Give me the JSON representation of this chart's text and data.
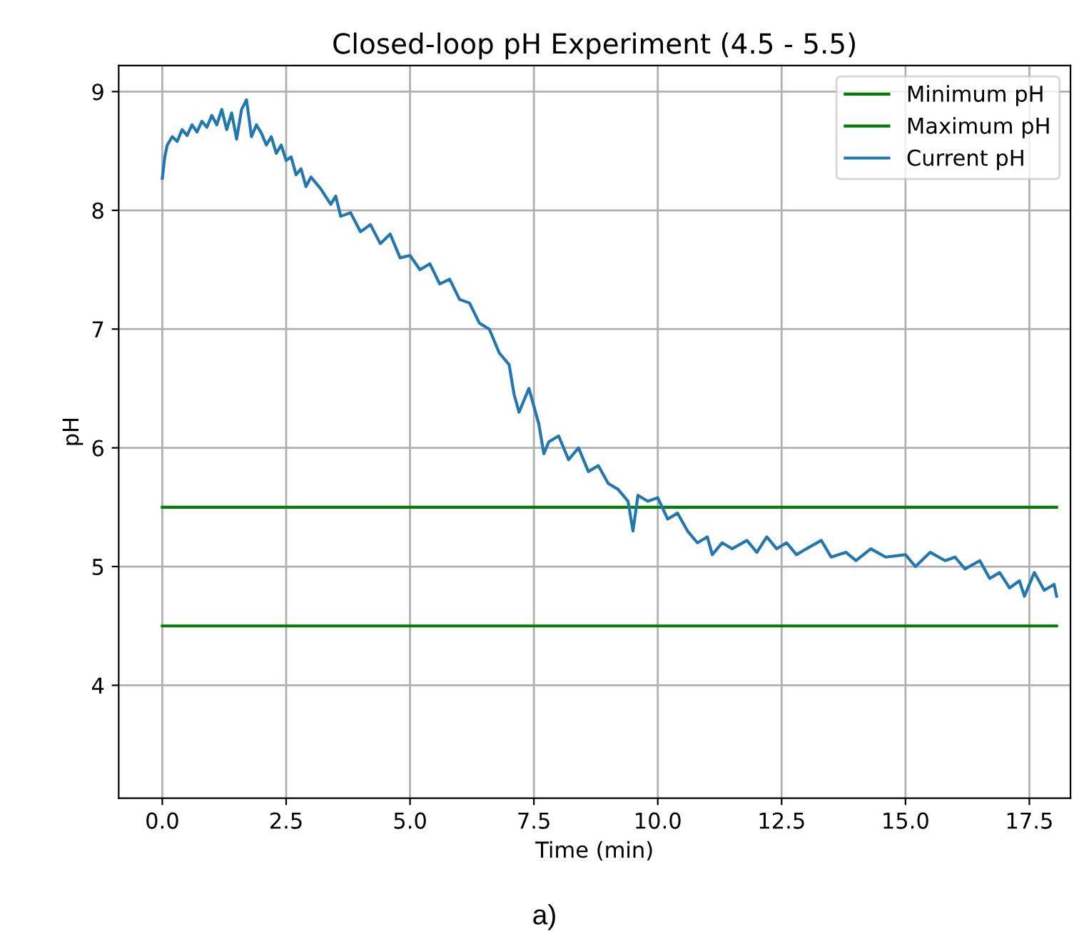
{
  "chart_data": {
    "type": "line",
    "title": "Closed-loop pH Experiment (4.5 - 5.5)",
    "xlabel": "Time (min)",
    "ylabel": "pH",
    "annotations": [
      "a)"
    ],
    "xlim": [
      -0.88,
      18.33
    ],
    "ylim": [
      3.05,
      9.22
    ],
    "xticks": [
      {
        "value": 0,
        "label": "0.0"
      },
      {
        "value": 2.5,
        "label": "2.5"
      },
      {
        "value": 5,
        "label": "5.0"
      },
      {
        "value": 7.5,
        "label": "7.5"
      },
      {
        "value": 10,
        "label": "10.0"
      },
      {
        "value": 12.5,
        "label": "12.5"
      },
      {
        "value": 15,
        "label": "15.0"
      },
      {
        "value": 17.5,
        "label": "17.5"
      }
    ],
    "yticks": [
      4,
      5,
      6,
      7,
      8,
      9
    ],
    "grid": true,
    "legend": "top right",
    "marker": "none",
    "line_style": "solid",
    "series": [
      {
        "name": "Minimum pH",
        "color": "#008000",
        "x": [
          0,
          18.05
        ],
        "values": [
          4.5,
          4.5
        ]
      },
      {
        "name": "Maximum pH",
        "color": "#008000",
        "x": [
          0,
          18.05
        ],
        "values": [
          5.5,
          5.5
        ]
      },
      {
        "name": "Current pH",
        "color": "#1f77b4",
        "x": [
          0.0,
          0.05,
          0.1,
          0.2,
          0.3,
          0.4,
          0.5,
          0.6,
          0.7,
          0.8,
          0.9,
          1.0,
          1.1,
          1.2,
          1.3,
          1.4,
          1.5,
          1.6,
          1.7,
          1.8,
          1.9,
          2.0,
          2.1,
          2.2,
          2.3,
          2.4,
          2.5,
          2.6,
          2.7,
          2.8,
          2.9,
          3.0,
          3.2,
          3.4,
          3.5,
          3.6,
          3.8,
          4.0,
          4.2,
          4.4,
          4.6,
          4.8,
          5.0,
          5.2,
          5.4,
          5.6,
          5.8,
          6.0,
          6.2,
          6.4,
          6.6,
          6.8,
          7.0,
          7.1,
          7.2,
          7.4,
          7.5,
          7.6,
          7.7,
          7.8,
          8.0,
          8.2,
          8.4,
          8.6,
          8.8,
          9.0,
          9.2,
          9.4,
          9.5,
          9.6,
          9.8,
          10.0,
          10.2,
          10.4,
          10.6,
          10.8,
          11.0,
          11.1,
          11.3,
          11.5,
          11.8,
          12.0,
          12.2,
          12.4,
          12.6,
          12.8,
          13.0,
          13.3,
          13.5,
          13.8,
          14.0,
          14.3,
          14.6,
          15.0,
          15.2,
          15.5,
          15.8,
          16.0,
          16.2,
          16.5,
          16.7,
          16.9,
          17.1,
          17.3,
          17.4,
          17.6,
          17.8,
          18.0,
          18.05
        ],
        "values": [
          8.27,
          8.45,
          8.55,
          8.62,
          8.58,
          8.68,
          8.63,
          8.72,
          8.66,
          8.75,
          8.7,
          8.8,
          8.72,
          8.85,
          8.68,
          8.82,
          8.6,
          8.85,
          8.93,
          8.62,
          8.72,
          8.65,
          8.55,
          8.62,
          8.48,
          8.55,
          8.42,
          8.45,
          8.3,
          8.35,
          8.2,
          8.28,
          8.18,
          8.05,
          8.12,
          7.95,
          7.98,
          7.82,
          7.88,
          7.72,
          7.8,
          7.6,
          7.62,
          7.5,
          7.55,
          7.38,
          7.42,
          7.25,
          7.22,
          7.05,
          7.0,
          6.8,
          6.7,
          6.45,
          6.3,
          6.5,
          6.35,
          6.2,
          5.95,
          6.05,
          6.1,
          5.9,
          6.0,
          5.8,
          5.85,
          5.7,
          5.65,
          5.55,
          5.3,
          5.6,
          5.55,
          5.58,
          5.4,
          5.45,
          5.3,
          5.2,
          5.25,
          5.1,
          5.2,
          5.15,
          5.22,
          5.12,
          5.25,
          5.15,
          5.2,
          5.1,
          5.15,
          5.22,
          5.08,
          5.12,
          5.05,
          5.15,
          5.08,
          5.1,
          5.0,
          5.12,
          5.05,
          5.08,
          4.98,
          5.05,
          4.9,
          4.95,
          4.82,
          4.88,
          4.75,
          4.95,
          4.8,
          4.85,
          4.75
        ]
      }
    ]
  }
}
